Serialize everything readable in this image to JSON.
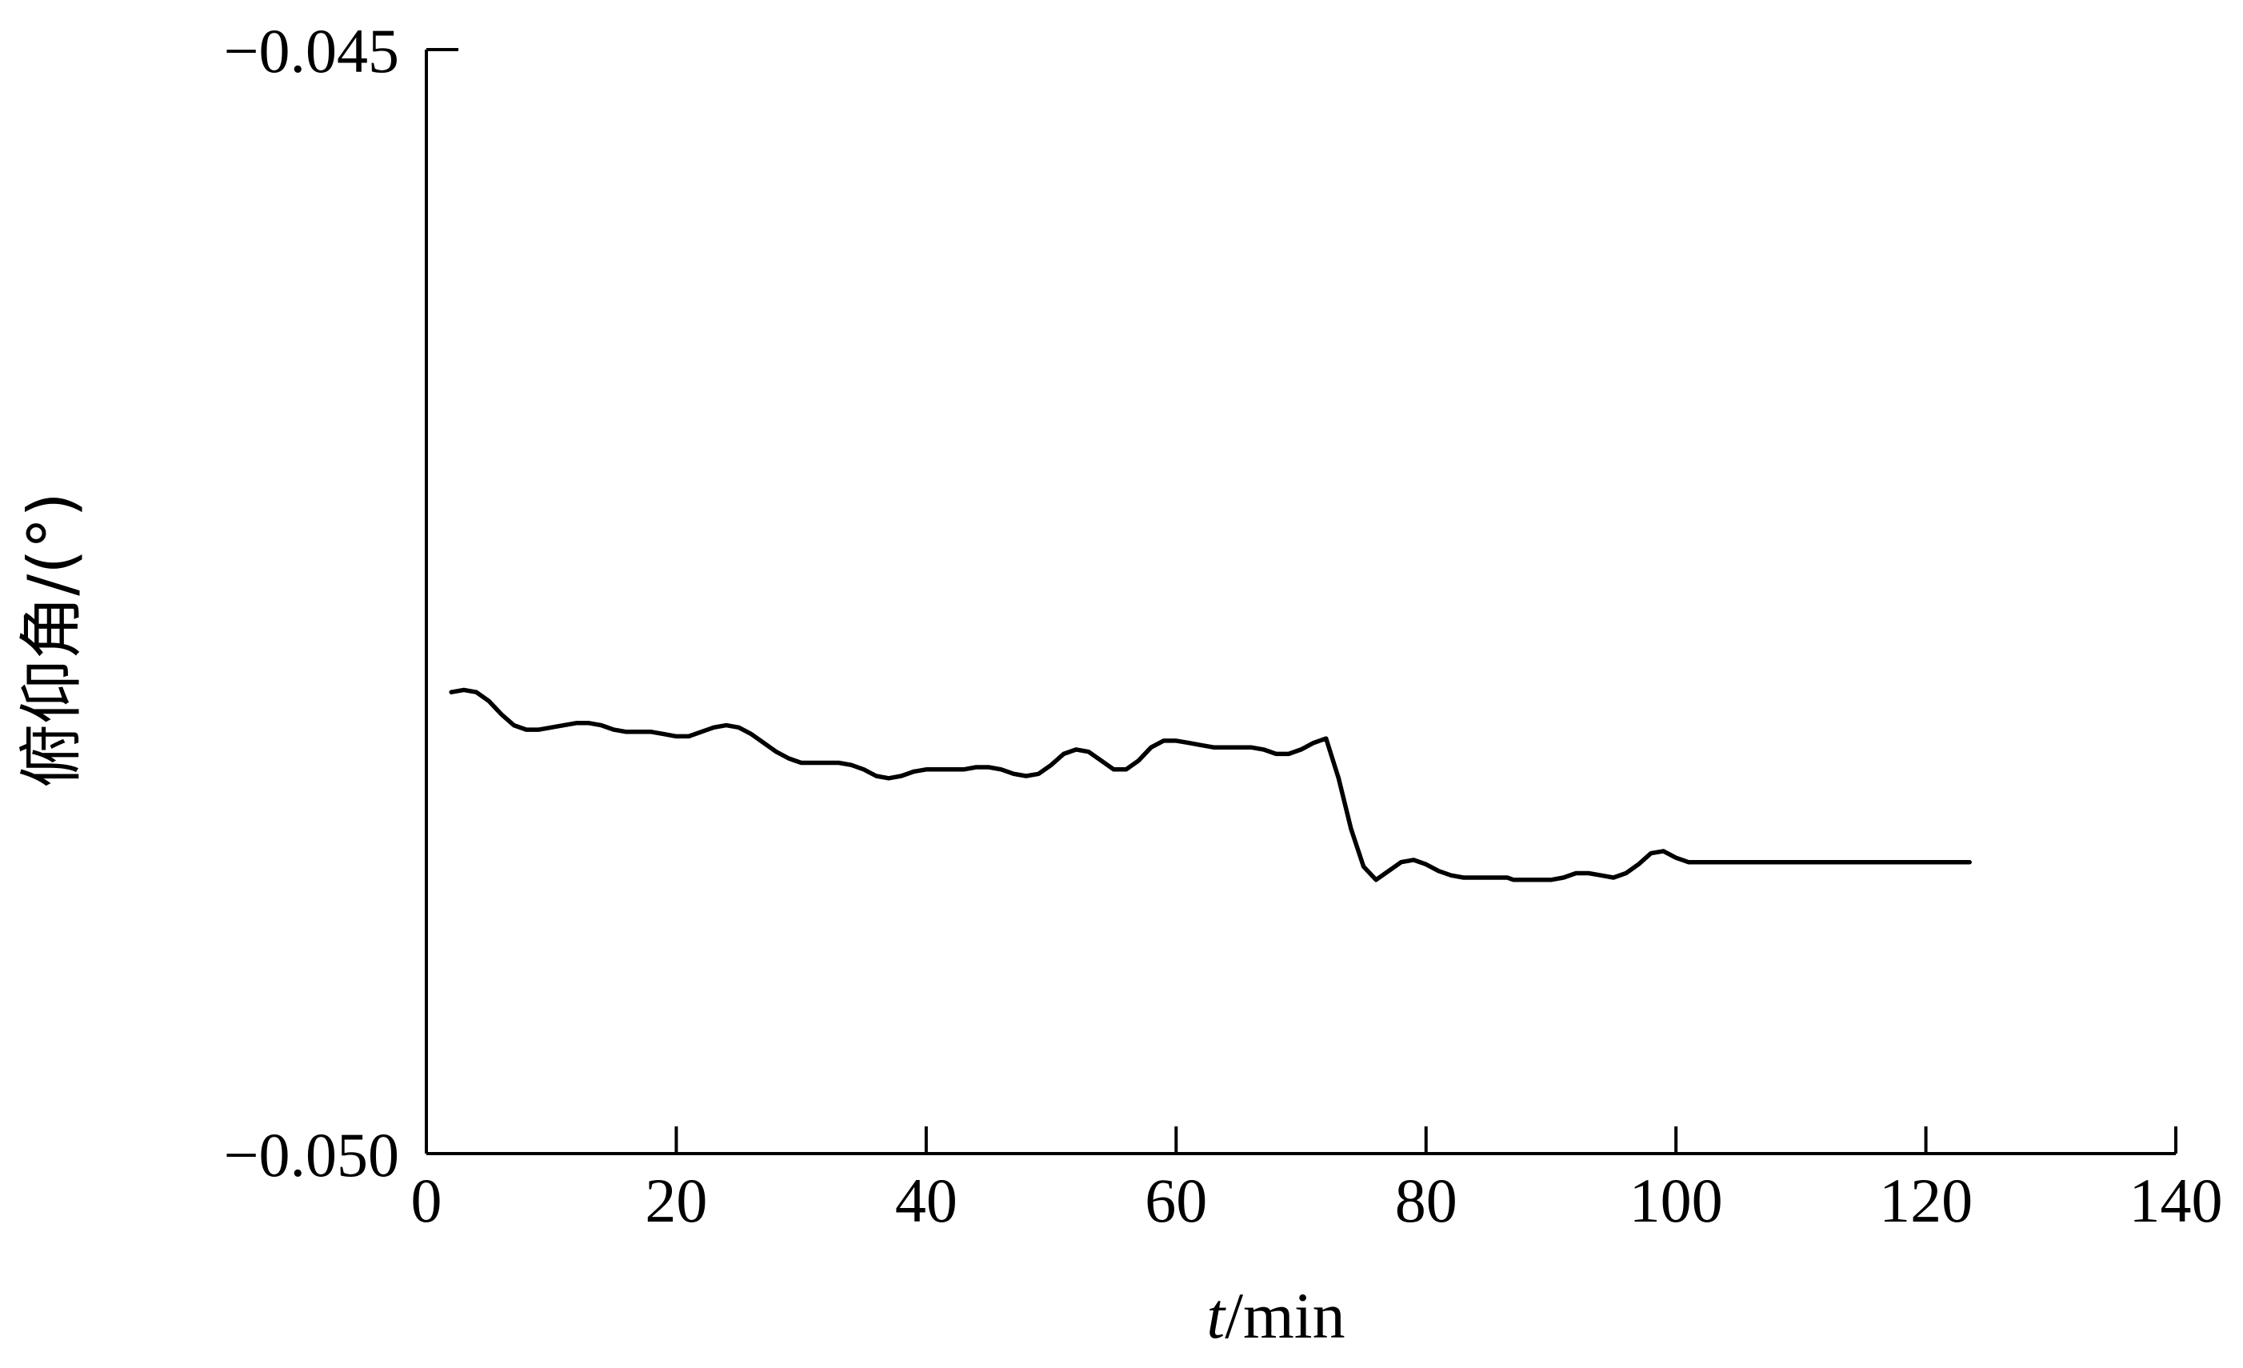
{
  "chart_data": {
    "type": "line",
    "xlabel_var": "t",
    "xlabel_unit": "/min",
    "ylabel": "俯仰角/(°)",
    "xlim": [
      0,
      140
    ],
    "ylim": [
      -0.05,
      -0.045
    ],
    "x_ticks": [
      0,
      20,
      40,
      60,
      80,
      100,
      120,
      140
    ],
    "x_tick_labels": [
      "0",
      "20",
      "40",
      "60",
      "80",
      "100",
      "120",
      "140"
    ],
    "y_ticks": [
      -0.045,
      -0.05
    ],
    "y_tick_labels": [
      "−0.045",
      "−0.050"
    ],
    "grid": false,
    "line_color": "#000000",
    "series": [
      {
        "x": [
          2,
          3,
          4,
          5,
          6,
          7,
          8,
          9,
          10,
          11,
          12,
          13,
          14,
          15,
          16,
          17,
          18,
          19,
          20,
          21,
          22,
          23,
          24,
          25,
          26,
          27,
          28,
          29,
          30,
          31,
          32,
          33,
          34,
          35,
          36,
          37,
          38,
          39,
          40,
          41,
          42,
          43,
          44,
          45,
          46,
          47,
          48,
          49,
          50,
          51,
          52,
          53,
          54,
          55,
          56,
          57,
          58,
          59,
          60,
          61,
          62,
          63,
          64,
          65,
          66,
          67,
          68,
          69,
          70,
          71,
          72,
          73,
          74,
          75,
          76,
          77,
          78,
          79,
          80,
          81,
          82,
          83,
          84,
          85,
          86,
          86.5,
          87,
          88,
          89,
          90,
          91,
          92,
          93,
          94,
          95,
          96,
          97,
          98,
          99,
          100,
          101,
          102,
          103,
          104,
          105,
          106,
          107,
          108,
          109,
          110,
          111,
          112,
          113,
          114,
          115,
          116,
          117,
          118,
          119,
          120,
          121,
          122,
          123.5
        ],
        "y": [
          -0.04791,
          -0.0479,
          -0.04791,
          -0.04795,
          -0.04801,
          -0.04806,
          -0.04808,
          -0.04808,
          -0.04807,
          -0.04806,
          -0.04805,
          -0.04805,
          -0.04806,
          -0.04808,
          -0.04809,
          -0.04809,
          -0.04809,
          -0.0481,
          -0.04811,
          -0.04811,
          -0.04809,
          -0.04807,
          -0.04806,
          -0.04807,
          -0.0481,
          -0.04814,
          -0.04818,
          -0.04821,
          -0.04823,
          -0.04823,
          -0.04823,
          -0.04823,
          -0.04824,
          -0.04826,
          -0.04829,
          -0.0483,
          -0.04829,
          -0.04827,
          -0.04826,
          -0.04826,
          -0.04826,
          -0.04826,
          -0.04825,
          -0.04825,
          -0.04826,
          -0.04828,
          -0.04829,
          -0.04828,
          -0.04824,
          -0.04819,
          -0.04817,
          -0.04818,
          -0.04822,
          -0.04826,
          -0.04826,
          -0.04822,
          -0.04816,
          -0.04813,
          -0.04813,
          -0.04814,
          -0.04815,
          -0.04816,
          -0.04816,
          -0.04816,
          -0.04816,
          -0.04817,
          -0.04819,
          -0.04819,
          -0.04817,
          -0.04814,
          -0.04812,
          -0.0483,
          -0.04853,
          -0.0487,
          -0.04876,
          -0.04872,
          -0.04868,
          -0.04867,
          -0.04869,
          -0.04872,
          -0.04874,
          -0.04875,
          -0.04875,
          -0.04875,
          -0.04875,
          -0.04875,
          -0.04876,
          -0.04876,
          -0.04876,
          -0.04876,
          -0.04875,
          -0.04873,
          -0.04873,
          -0.04874,
          -0.04875,
          -0.04873,
          -0.04869,
          -0.04864,
          -0.04863,
          -0.04866,
          -0.04868,
          -0.04868,
          -0.04868,
          -0.04868,
          -0.04868,
          -0.04868,
          -0.04868,
          -0.04868,
          -0.04868,
          -0.04868,
          -0.04868,
          -0.04868,
          -0.04868,
          -0.04868,
          -0.04868,
          -0.04868,
          -0.04868,
          -0.04868,
          -0.04868,
          -0.04868,
          -0.04868,
          -0.04868,
          -0.04868
        ]
      }
    ]
  }
}
